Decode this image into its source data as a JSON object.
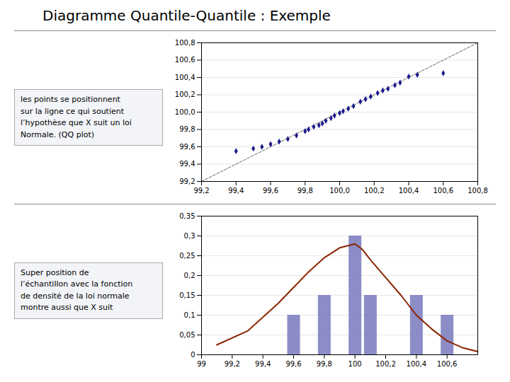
{
  "chart_data": [
    {
      "type": "scatter",
      "title": "Diagramme Quantile-Quantile : Exemple",
      "annotations": [
        "les points se positionnent\nsur la ligne ce qui soutient\nl’hypothèse que X suit un loi\nNormale. (QQ plot)"
      ],
      "series": [
        {
          "type": "line",
          "line_style": "dashed",
          "color": "#666666",
          "x": [
            99.2,
            100.8
          ],
          "values": [
            99.2,
            100.8
          ]
        },
        {
          "type": "scatter",
          "marker": "diamond",
          "color": "#1a1a8c",
          "x": [
            99.4,
            99.5,
            99.55,
            99.6,
            99.65,
            99.7,
            99.75,
            99.8,
            99.82,
            99.85,
            99.88,
            99.9,
            99.92,
            99.95,
            99.97,
            100.0,
            100.02,
            100.05,
            100.08,
            100.12,
            100.15,
            100.18,
            100.22,
            100.25,
            100.28,
            100.32,
            100.35,
            100.4,
            100.45,
            100.6
          ],
          "values": [
            99.55,
            99.58,
            99.6,
            99.63,
            99.66,
            99.69,
            99.73,
            99.78,
            99.8,
            99.83,
            99.85,
            99.87,
            99.9,
            99.93,
            99.96,
            99.99,
            100.01,
            100.04,
            100.07,
            100.12,
            100.15,
            100.18,
            100.22,
            100.25,
            100.27,
            100.31,
            100.34,
            100.41,
            100.43,
            100.45
          ]
        }
      ],
      "xlim": [
        99.2,
        100.8
      ],
      "ylim": [
        99.2,
        100.8
      ],
      "xticks": [
        {
          "value": 99.2,
          "label": "99,2"
        },
        {
          "value": 99.4,
          "label": "99,4"
        },
        {
          "value": 99.6,
          "label": "99,6"
        },
        {
          "value": 99.8,
          "label": "99,8"
        },
        {
          "value": 100.0,
          "label": "100,0"
        },
        {
          "value": 100.2,
          "label": "100,2"
        },
        {
          "value": 100.4,
          "label": "100,4"
        },
        {
          "value": 100.6,
          "label": "100,6"
        },
        {
          "value": 100.8,
          "label": "100,8"
        }
      ],
      "yticks": [
        {
          "value": 99.2,
          "label": "99,2"
        },
        {
          "value": 99.4,
          "label": "99,4"
        },
        {
          "value": 99.6,
          "label": "99,6"
        },
        {
          "value": 99.8,
          "label": "99,8"
        },
        {
          "value": 100.0,
          "label": "100,0"
        },
        {
          "value": 100.2,
          "label": "100,2"
        },
        {
          "value": 100.4,
          "label": "100,4"
        },
        {
          "value": 100.6,
          "label": "100,6"
        },
        {
          "value": 100.8,
          "label": "100,8"
        }
      ],
      "grid": "y"
    },
    {
      "type": "bar",
      "annotations": [
        "Super position de\nl’échantillon avec la fonction\nde densité de la loi normale\nmontre aussi que X suit"
      ],
      "series": [
        {
          "type": "bar",
          "color": "#8080c0",
          "x": [
            99.6,
            99.8,
            100.0,
            100.1,
            100.4,
            100.6
          ],
          "values": [
            0.1,
            0.15,
            0.3,
            0.15,
            0.15,
            0.1
          ]
        },
        {
          "type": "line",
          "color": "#8b2500",
          "x": [
            99.1,
            99.3,
            99.5,
            99.6,
            99.7,
            99.8,
            99.9,
            100.0,
            100.05,
            100.1,
            100.2,
            100.3,
            100.4,
            100.5,
            100.6,
            100.7,
            100.8
          ],
          "values": [
            0.025,
            0.06,
            0.13,
            0.17,
            0.21,
            0.245,
            0.27,
            0.28,
            0.265,
            0.24,
            0.195,
            0.15,
            0.1,
            0.065,
            0.035,
            0.018,
            0.008
          ]
        }
      ],
      "xlim": [
        99.0,
        100.8
      ],
      "ylim": [
        0,
        0.35
      ],
      "xticks": [
        99,
        {
          "value": 99.2,
          "label": "99,2"
        },
        {
          "value": 99.4,
          "label": "99,4"
        },
        {
          "value": 99.6,
          "label": "99,6"
        },
        {
          "value": 99.8,
          "label": "99,8"
        },
        100,
        {
          "value": 100.2,
          "label": "100,2"
        },
        {
          "value": 100.4,
          "label": "100,4"
        },
        {
          "value": 100.6,
          "label": "100,6"
        }
      ],
      "yticks": [
        0,
        {
          "value": 0.05,
          "label": "0,05"
        },
        {
          "value": 0.1,
          "label": "0,1"
        },
        {
          "value": 0.15,
          "label": "0,15"
        },
        {
          "value": 0.2,
          "label": "0,2"
        },
        {
          "value": 0.25,
          "label": "0,25"
        },
        {
          "value": 0.3,
          "label": "0,3"
        },
        {
          "value": 0.35,
          "label": "0,35"
        }
      ],
      "grid": "y"
    }
  ]
}
